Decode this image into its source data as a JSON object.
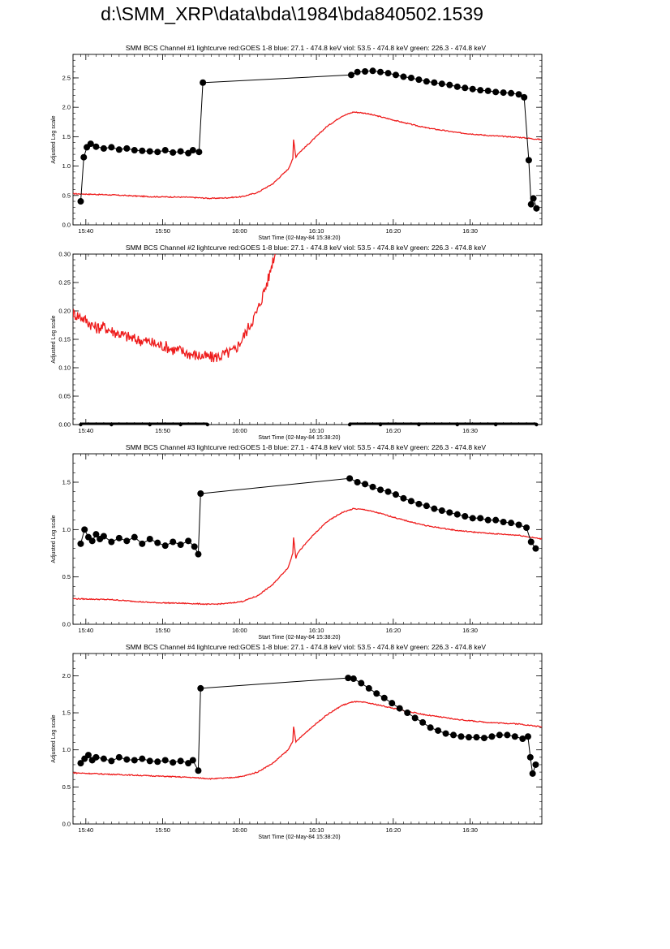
{
  "page": {
    "title": "d:\\SMM_XRP\\data\\bda\\1984\\bda840502.1539"
  },
  "colors": {
    "goes": "#ee1c1c",
    "bcs": "#000000"
  },
  "chart_data": [
    {
      "type": "line",
      "title": "SMM BCS Channel #1 lightcurve  red:GOES 1-8  blue: 27.1 - 474.8 keV  viol: 53.5 - 474.8 keV  green: 226.3 - 474.8 keV",
      "xlabel": "Start Time (02-May-84 15:38:20)",
      "ylabel": "Adjusted Log scale",
      "xlim": [
        0,
        61
      ],
      "ylim": [
        0,
        2.9
      ],
      "xticks": [
        1.67,
        11.67,
        21.67,
        31.67,
        41.67,
        51.67
      ],
      "xticklabels": [
        "15:40",
        "15:50",
        "16:00",
        "16:10",
        "16:20",
        "16:30"
      ],
      "yticks": [
        0.0,
        0.5,
        1.0,
        1.5,
        2.0,
        2.5
      ],
      "yticklabels": [
        "0.0",
        "0.5",
        "1.0",
        "1.5",
        "2.0",
        "2.5"
      ],
      "series": [
        {
          "role": "goes",
          "x": [
            0,
            5,
            10,
            15,
            18,
            20,
            22,
            24,
            26,
            28,
            28.6,
            28.7,
            29.0,
            29.2,
            31,
            33,
            35,
            36.5,
            38,
            40,
            43,
            46,
            50,
            54,
            58,
            61
          ],
          "y": [
            0.53,
            0.51,
            0.48,
            0.47,
            0.45,
            0.46,
            0.48,
            0.55,
            0.7,
            0.95,
            1.12,
            1.45,
            1.15,
            1.2,
            1.42,
            1.67,
            1.85,
            1.92,
            1.9,
            1.84,
            1.74,
            1.65,
            1.57,
            1.52,
            1.49,
            1.45
          ]
        },
        {
          "role": "bcs",
          "x": [
            1.0,
            1.4,
            1.8,
            2.3,
            3,
            4,
            5,
            6,
            7,
            8,
            9,
            10,
            11,
            12,
            13,
            14,
            15,
            15.6,
            16.4,
            16.9,
            36.2,
            37,
            38,
            39,
            40,
            41,
            42,
            43,
            44,
            45,
            46,
            47,
            48,
            49,
            50,
            51,
            52,
            53,
            54,
            55,
            56,
            57,
            58,
            58.7,
            59.3,
            59.6,
            59.9,
            60.3
          ],
          "y": [
            0.4,
            1.15,
            1.32,
            1.38,
            1.33,
            1.3,
            1.32,
            1.28,
            1.3,
            1.27,
            1.26,
            1.25,
            1.24,
            1.27,
            1.23,
            1.25,
            1.22,
            1.27,
            1.24,
            2.42,
            2.55,
            2.6,
            2.61,
            2.62,
            2.6,
            2.58,
            2.55,
            2.52,
            2.5,
            2.47,
            2.44,
            2.42,
            2.4,
            2.38,
            2.35,
            2.33,
            2.31,
            2.29,
            2.28,
            2.26,
            2.25,
            2.24,
            2.22,
            2.17,
            1.1,
            0.35,
            0.45,
            0.28
          ]
        }
      ]
    },
    {
      "type": "line",
      "title": "SMM BCS Channel #2 lightcurve  red:GOES 1-8  blue: 27.1 - 474.8 keV  viol: 53.5 - 474.8 keV  green: 226.3 - 474.8 keV",
      "xlabel": "Start Time (02-May-84 15:38:20)",
      "ylabel": "Adjusted Log scale",
      "xlim": [
        0,
        61
      ],
      "ylim": [
        0,
        0.3
      ],
      "xticks": [
        1.67,
        11.67,
        21.67,
        31.67,
        41.67,
        51.67
      ],
      "xticklabels": [
        "15:40",
        "15:50",
        "16:00",
        "16:10",
        "16:20",
        "16:30"
      ],
      "yticks": [
        0.0,
        0.05,
        0.1,
        0.15,
        0.2,
        0.25,
        0.3
      ],
      "yticklabels": [
        "0.00",
        "0.05",
        "0.10",
        "0.15",
        "0.20",
        "0.25",
        "0.30"
      ],
      "series": [
        {
          "role": "goes",
          "x": [
            0,
            1,
            2,
            3,
            4,
            5,
            6,
            7,
            8,
            9,
            10,
            11,
            12,
            13,
            14,
            15,
            16,
            17,
            18,
            19,
            20,
            21,
            22,
            23,
            24,
            24.5,
            25,
            25.5,
            26,
            26.3
          ],
          "y": [
            0.195,
            0.19,
            0.18,
            0.17,
            0.172,
            0.165,
            0.16,
            0.155,
            0.15,
            0.148,
            0.145,
            0.14,
            0.138,
            0.132,
            0.13,
            0.125,
            0.122,
            0.12,
            0.118,
            0.12,
            0.125,
            0.13,
            0.15,
            0.175,
            0.2,
            0.22,
            0.24,
            0.26,
            0.29,
            0.3
          ]
        },
        {
          "role": "bcs",
          "x": [
            1,
            5,
            10,
            14,
            17.5,
            36,
            40,
            45,
            50,
            55,
            60.3
          ],
          "y": [
            0,
            0,
            0,
            0,
            0,
            0,
            0,
            0,
            0,
            0,
            0
          ]
        }
      ]
    },
    {
      "type": "line",
      "title": "SMM BCS Channel #3 lightcurve  red:GOES 1-8  blue: 27.1 - 474.8 keV  viol: 53.5 - 474.8 keV  green: 226.3 - 474.8 keV",
      "xlabel": "Start Time (02-May-84 15:38:20)",
      "ylabel": "Adjusted Log scale",
      "xlim": [
        0,
        61
      ],
      "ylim": [
        0,
        1.8
      ],
      "xticks": [
        1.67,
        11.67,
        21.67,
        31.67,
        41.67,
        51.67
      ],
      "xticklabels": [
        "15:40",
        "15:50",
        "16:00",
        "16:10",
        "16:20",
        "16:30"
      ],
      "yticks": [
        0.0,
        0.5,
        1.0,
        1.5
      ],
      "yticklabels": [
        "0.0",
        "0.5",
        "1.0",
        "1.5"
      ],
      "series": [
        {
          "role": "goes",
          "x": [
            0,
            5,
            10,
            15,
            18,
            20,
            22,
            24,
            26,
            28,
            28.6,
            28.7,
            29.0,
            29.2,
            31,
            33,
            35,
            36.5,
            38,
            40,
            43,
            46,
            50,
            54,
            58,
            61
          ],
          "y": [
            0.27,
            0.26,
            0.23,
            0.22,
            0.21,
            0.22,
            0.24,
            0.3,
            0.42,
            0.6,
            0.75,
            0.92,
            0.7,
            0.75,
            0.92,
            1.08,
            1.18,
            1.22,
            1.21,
            1.17,
            1.1,
            1.04,
            0.99,
            0.96,
            0.94,
            0.9
          ]
        },
        {
          "role": "bcs",
          "x": [
            1.0,
            1.5,
            2,
            2.5,
            3,
            3.5,
            4,
            5,
            6,
            7,
            8,
            9,
            10,
            11,
            12,
            13,
            14,
            15,
            15.8,
            16.3,
            16.6,
            36.0,
            37,
            38,
            39,
            40,
            41,
            42,
            43,
            44,
            45,
            46,
            47,
            48,
            49,
            50,
            51,
            52,
            53,
            54,
            55,
            56,
            57,
            58,
            59,
            59.6,
            60.2
          ],
          "y": [
            0.85,
            1.0,
            0.92,
            0.88,
            0.95,
            0.9,
            0.93,
            0.87,
            0.91,
            0.88,
            0.92,
            0.85,
            0.9,
            0.86,
            0.83,
            0.87,
            0.84,
            0.88,
            0.82,
            0.74,
            1.38,
            1.54,
            1.5,
            1.48,
            1.45,
            1.42,
            1.4,
            1.37,
            1.33,
            1.3,
            1.27,
            1.25,
            1.22,
            1.2,
            1.18,
            1.16,
            1.14,
            1.12,
            1.12,
            1.1,
            1.1,
            1.08,
            1.07,
            1.05,
            1.02,
            0.87,
            0.8
          ]
        }
      ]
    },
    {
      "type": "line",
      "title": "SMM BCS Channel #4 lightcurve  red:GOES 1-8  blue: 27.1 - 474.8 keV  viol: 53.5 - 474.8 keV  green: 226.3 - 474.8 keV",
      "xlabel": "Start Time (02-May-84 15:38:20)",
      "ylabel": "Adjusted Log scale",
      "xlim": [
        0,
        61
      ],
      "ylim": [
        0,
        2.3
      ],
      "xticks": [
        1.67,
        11.67,
        21.67,
        31.67,
        41.67,
        51.67
      ],
      "xticklabels": [
        "15:40",
        "15:50",
        "16:00",
        "16:10",
        "16:20",
        "16:30"
      ],
      "yticks": [
        0.0,
        0.5,
        1.0,
        1.5,
        2.0
      ],
      "yticklabels": [
        "0.0",
        "0.5",
        "1.0",
        "1.5",
        "2.0"
      ],
      "series": [
        {
          "role": "goes",
          "x": [
            0,
            5,
            10,
            15,
            18,
            20,
            22,
            24,
            26,
            28,
            28.6,
            28.7,
            29.0,
            29.2,
            31,
            33,
            35,
            36.5,
            38,
            40,
            43,
            46,
            50,
            54,
            58,
            61
          ],
          "y": [
            0.69,
            0.67,
            0.65,
            0.63,
            0.61,
            0.62,
            0.64,
            0.7,
            0.82,
            1.0,
            1.12,
            1.32,
            1.1,
            1.13,
            1.3,
            1.47,
            1.6,
            1.65,
            1.64,
            1.6,
            1.53,
            1.47,
            1.41,
            1.37,
            1.35,
            1.31
          ]
        },
        {
          "role": "bcs",
          "x": [
            1.0,
            1.5,
            2,
            2.5,
            3,
            4,
            5,
            6,
            7,
            8,
            9,
            10,
            11,
            12,
            13,
            14,
            15,
            15.6,
            16.3,
            16.6,
            35.8,
            36.5,
            37.5,
            38.5,
            39.5,
            40.5,
            41.5,
            42.5,
            43.5,
            44.5,
            45.5,
            46.5,
            47.5,
            48.5,
            49.5,
            50.5,
            51.5,
            52.5,
            53.5,
            54.5,
            55.5,
            56.5,
            57.5,
            58.5,
            59.2,
            59.5,
            59.8,
            60.2
          ],
          "y": [
            0.82,
            0.88,
            0.93,
            0.86,
            0.9,
            0.88,
            0.85,
            0.9,
            0.87,
            0.86,
            0.88,
            0.85,
            0.84,
            0.86,
            0.83,
            0.85,
            0.82,
            0.86,
            0.72,
            1.83,
            1.97,
            1.96,
            1.9,
            1.83,
            1.76,
            1.7,
            1.63,
            1.56,
            1.5,
            1.43,
            1.37,
            1.3,
            1.26,
            1.22,
            1.2,
            1.18,
            1.17,
            1.17,
            1.16,
            1.18,
            1.2,
            1.2,
            1.18,
            1.15,
            1.18,
            0.9,
            0.68,
            0.8
          ]
        }
      ]
    }
  ]
}
